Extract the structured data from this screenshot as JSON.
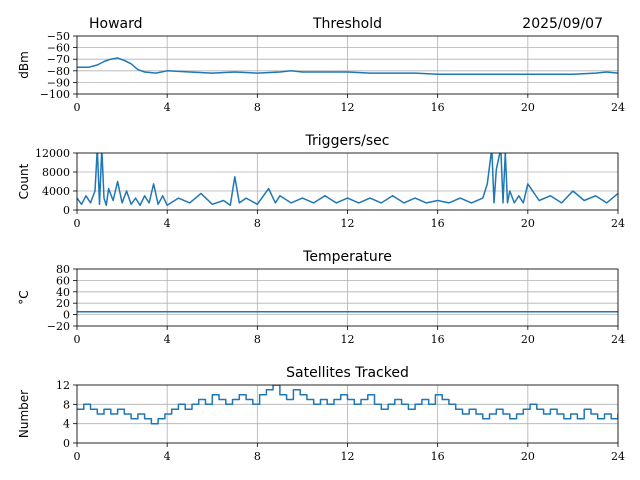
{
  "header": {
    "station": "Howard",
    "date": "2025/09/07"
  },
  "chart_data": [
    {
      "type": "line",
      "title": "Threshold",
      "ylabel": "dBm",
      "xlim": [
        0,
        24
      ],
      "ylim": [
        -100,
        -50
      ],
      "xticks": [
        "0",
        "4",
        "8",
        "12",
        "16",
        "20",
        "24"
      ],
      "yticks": [
        "−100",
        "−90",
        "−80",
        "−70",
        "−60",
        "−50"
      ],
      "step": false,
      "series": [
        {
          "name": "Threshold",
          "x": [
            0,
            0.5,
            0.9,
            1.2,
            1.5,
            1.8,
            2.1,
            2.4,
            2.7,
            3.0,
            3.5,
            4.0,
            5.0,
            6.0,
            7.0,
            8.0,
            9.0,
            9.5,
            10.0,
            11.0,
            12.0,
            13.0,
            14.0,
            15.0,
            16.0,
            17.0,
            18.0,
            19.0,
            20.0,
            21.0,
            22.0,
            23.0,
            23.5,
            24.0
          ],
          "y": [
            -77,
            -77,
            -75,
            -72,
            -70,
            -69,
            -71,
            -74,
            -79,
            -81,
            -82,
            -80,
            -81,
            -82,
            -81,
            -82,
            -81,
            -80,
            -81,
            -81,
            -81,
            -82,
            -82,
            -82,
            -83,
            -83,
            -83,
            -83,
            -83,
            -83,
            -83,
            -82,
            -81,
            -82
          ]
        }
      ]
    },
    {
      "type": "line",
      "title": "Triggers/sec",
      "ylabel": "Count",
      "xlim": [
        0,
        24
      ],
      "ylim": [
        0,
        12000
      ],
      "xticks": [
        "0",
        "4",
        "8",
        "12",
        "16",
        "20",
        "24"
      ],
      "yticks": [
        "0",
        "4000",
        "8000",
        "12000"
      ],
      "step": false,
      "series": [
        {
          "name": "Triggers",
          "x": [
            0,
            0.2,
            0.4,
            0.6,
            0.8,
            0.9,
            1.0,
            1.1,
            1.2,
            1.3,
            1.4,
            1.6,
            1.8,
            2.0,
            2.2,
            2.4,
            2.6,
            2.8,
            3.0,
            3.2,
            3.4,
            3.6,
            3.8,
            4.0,
            4.5,
            5.0,
            5.5,
            6.0,
            6.5,
            6.8,
            7.0,
            7.2,
            7.5,
            8.0,
            8.5,
            8.8,
            9.0,
            9.5,
            10.0,
            10.5,
            11.0,
            11.5,
            12.0,
            12.5,
            13.0,
            13.5,
            14.0,
            14.5,
            15.0,
            15.5,
            16.0,
            16.5,
            17.0,
            17.5,
            18.0,
            18.2,
            18.4,
            18.5,
            18.6,
            18.8,
            18.9,
            19.0,
            19.1,
            19.2,
            19.4,
            19.6,
            19.8,
            20.0,
            20.5,
            21.0,
            21.5,
            22.0,
            22.5,
            23.0,
            23.5,
            24.0
          ],
          "y": [
            2500,
            1200,
            3000,
            1500,
            4000,
            13000,
            1200,
            13000,
            2500,
            1000,
            4500,
            2000,
            6000,
            1500,
            4000,
            1200,
            2500,
            1000,
            3000,
            1500,
            5500,
            1200,
            3000,
            1000,
            2500,
            1500,
            3500,
            1200,
            2000,
            1000,
            7000,
            1500,
            2500,
            1200,
            4500,
            1500,
            3000,
            1500,
            2500,
            1500,
            3000,
            1500,
            2500,
            1500,
            2500,
            1500,
            3000,
            1500,
            2500,
            1500,
            2000,
            1500,
            2500,
            1500,
            2500,
            5500,
            13000,
            1500,
            8500,
            13000,
            1500,
            12000,
            1500,
            4000,
            1500,
            3000,
            1500,
            5500,
            2000,
            3000,
            1500,
            4000,
            2000,
            3000,
            1500,
            3500
          ]
        }
      ]
    },
    {
      "type": "line",
      "title": "Temperature",
      "ylabel": "°C",
      "xlim": [
        0,
        24
      ],
      "ylim": [
        -20,
        80
      ],
      "xticks": [
        "0",
        "4",
        "8",
        "12",
        "16",
        "20",
        "24"
      ],
      "yticks": [
        "−20",
        "0",
        "20",
        "40",
        "60",
        "80"
      ],
      "step": false,
      "series": [
        {
          "name": "Temperature",
          "x": [
            0,
            24
          ],
          "y": [
            5,
            5
          ]
        }
      ]
    },
    {
      "type": "line",
      "title": "Satellites Tracked",
      "ylabel": "Number",
      "xlim": [
        0,
        24
      ],
      "ylim": [
        0,
        12
      ],
      "xticks": [
        "0",
        "4",
        "8",
        "12",
        "16",
        "20",
        "24"
      ],
      "yticks": [
        "0",
        "4",
        "8",
        "12"
      ],
      "step": true,
      "series": [
        {
          "name": "Satellites",
          "x": [
            0,
            0.3,
            0.6,
            0.9,
            1.2,
            1.5,
            1.8,
            2.1,
            2.4,
            2.7,
            3.0,
            3.3,
            3.6,
            3.9,
            4.2,
            4.5,
            4.8,
            5.1,
            5.4,
            5.7,
            6.0,
            6.3,
            6.6,
            6.9,
            7.2,
            7.5,
            7.8,
            8.1,
            8.4,
            8.7,
            9.0,
            9.3,
            9.6,
            9.9,
            10.2,
            10.5,
            10.8,
            11.1,
            11.4,
            11.7,
            12.0,
            12.3,
            12.6,
            12.9,
            13.2,
            13.5,
            13.8,
            14.1,
            14.4,
            14.7,
            15.0,
            15.3,
            15.6,
            15.9,
            16.2,
            16.5,
            16.8,
            17.1,
            17.4,
            17.7,
            18.0,
            18.3,
            18.6,
            18.9,
            19.2,
            19.5,
            19.8,
            20.1,
            20.4,
            20.7,
            21.0,
            21.3,
            21.6,
            21.9,
            22.2,
            22.5,
            22.8,
            23.1,
            23.4,
            23.7,
            24.0
          ],
          "y": [
            7,
            8,
            7,
            6,
            7,
            6,
            7,
            6,
            5,
            6,
            5,
            4,
            5,
            6,
            7,
            8,
            7,
            8,
            9,
            8,
            10,
            9,
            8,
            9,
            10,
            9,
            8,
            10,
            11,
            12,
            10,
            9,
            11,
            10,
            9,
            8,
            9,
            8,
            9,
            10,
            9,
            8,
            9,
            10,
            8,
            7,
            8,
            9,
            8,
            7,
            8,
            9,
            8,
            10,
            9,
            8,
            7,
            6,
            7,
            6,
            5,
            6,
            7,
            6,
            5,
            6,
            7,
            8,
            7,
            6,
            7,
            6,
            5,
            6,
            5,
            7,
            6,
            5,
            6,
            5,
            6
          ]
        }
      ]
    }
  ]
}
